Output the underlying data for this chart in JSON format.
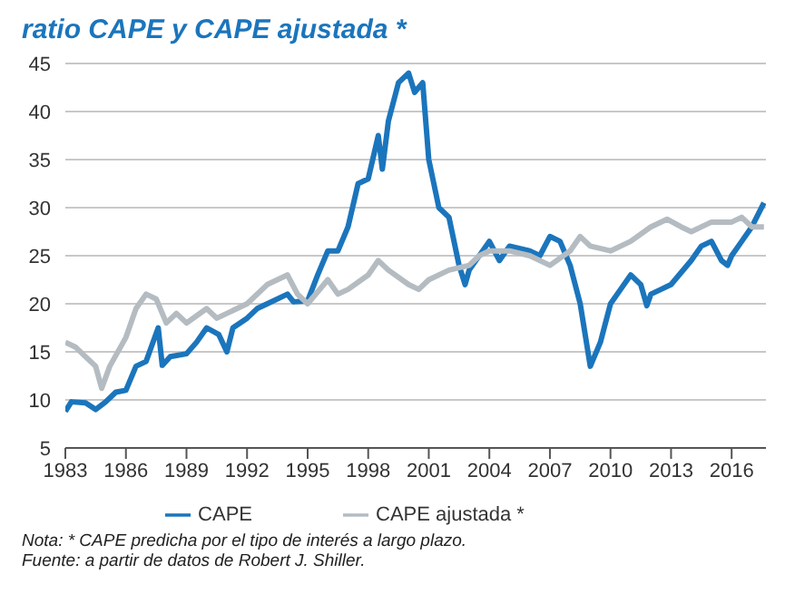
{
  "chart_data": {
    "type": "line",
    "title": "ratio CAPE y CAPE ajustada *",
    "xlim": [
      1983,
      2017.7
    ],
    "xticks": [
      1983,
      1986,
      1989,
      1992,
      1995,
      1998,
      2001,
      2004,
      2007,
      2010,
      2013,
      2016
    ],
    "ylim": [
      5,
      45
    ],
    "yticks": [
      5,
      10,
      15,
      20,
      25,
      30,
      35,
      40,
      45
    ],
    "grid": "y",
    "legend": "bottom",
    "marker": "none",
    "line_style": "solid",
    "series": [
      {
        "name": "CAPE",
        "color": "#1b75bc",
        "x": [
          1983,
          1983.3,
          1984,
          1984.5,
          1985,
          1985.5,
          1986,
          1986.5,
          1987,
          1987.6,
          1987.8,
          1988.2,
          1989,
          1989.5,
          1990,
          1990.6,
          1991,
          1991.3,
          1992,
          1992.5,
          1993,
          1994,
          1994.3,
          1995,
          1995.5,
          1996,
          1996.5,
          1997,
          1997.5,
          1998,
          1998.5,
          1998.7,
          1999,
          1999.5,
          2000,
          2000.3,
          2000.7,
          2001,
          2001.5,
          2002,
          2002.5,
          2002.8,
          2003,
          2004,
          2004.5,
          2005,
          2006,
          2006.5,
          2007,
          2007.5,
          2008,
          2008.5,
          2009,
          2009.5,
          2010,
          2010.5,
          2011,
          2011.5,
          2011.8,
          2012,
          2012.5,
          2013,
          2014,
          2014.5,
          2015,
          2015.5,
          2015.8,
          2016,
          2016.5,
          2017,
          2017.6
        ],
        "values": [
          8.8,
          9.8,
          9.7,
          9.0,
          9.8,
          10.8,
          11.0,
          13.5,
          14,
          17.5,
          13.6,
          14.5,
          14.8,
          16,
          17.5,
          16.8,
          15,
          17.5,
          18.5,
          19.5,
          20,
          21,
          20.2,
          20.3,
          23,
          25.5,
          25.5,
          28,
          32.5,
          33,
          37.5,
          34,
          39,
          43,
          44,
          42,
          43,
          35,
          30,
          29,
          24,
          22,
          23.5,
          26.5,
          24.5,
          26,
          25.5,
          25,
          27,
          26.5,
          24,
          20,
          13.5,
          16,
          20,
          21.5,
          23,
          22,
          19.8,
          21,
          21.5,
          22,
          24.5,
          26,
          26.5,
          24.5,
          24,
          25,
          26.5,
          28,
          30.5
        ]
      },
      {
        "name": "CAPE ajustada *",
        "color": "#b4bcc2",
        "x": [
          1983,
          1983.5,
          1984,
          1984.5,
          1984.8,
          1985.2,
          1986,
          1986.5,
          1987,
          1987.5,
          1988,
          1988.5,
          1989,
          1990,
          1990.5,
          1991,
          1992,
          1993,
          1994,
          1994.5,
          1995,
          1996,
          1996.5,
          1997,
          1998,
          1998.5,
          1999,
          2000,
          2000.5,
          2001,
          2002,
          2003,
          2003.5,
          2004,
          2005,
          2006,
          2007,
          2008,
          2008.5,
          2009,
          2010,
          2011,
          2012,
          2012.8,
          2013.5,
          2014,
          2015,
          2016,
          2016.5,
          2017,
          2017.6
        ],
        "values": [
          16,
          15.5,
          14.5,
          13.5,
          11.2,
          13.5,
          16.5,
          19.5,
          21,
          20.5,
          18,
          19,
          18,
          19.5,
          18.5,
          19,
          20,
          22,
          23,
          21,
          20,
          22.5,
          21,
          21.5,
          23,
          24.5,
          23.5,
          22,
          21.5,
          22.5,
          23.5,
          24,
          25,
          25.5,
          25.5,
          25,
          24,
          25.5,
          27,
          26,
          25.5,
          26.5,
          28,
          28.8,
          28,
          27.5,
          28.5,
          28.5,
          29,
          28,
          28
        ]
      }
    ],
    "annotations": [
      "Nota: * CAPE predicha por el tipo de interés a largo plazo.",
      "Fuente: a partir de datos de Robert J. Shiller."
    ]
  }
}
